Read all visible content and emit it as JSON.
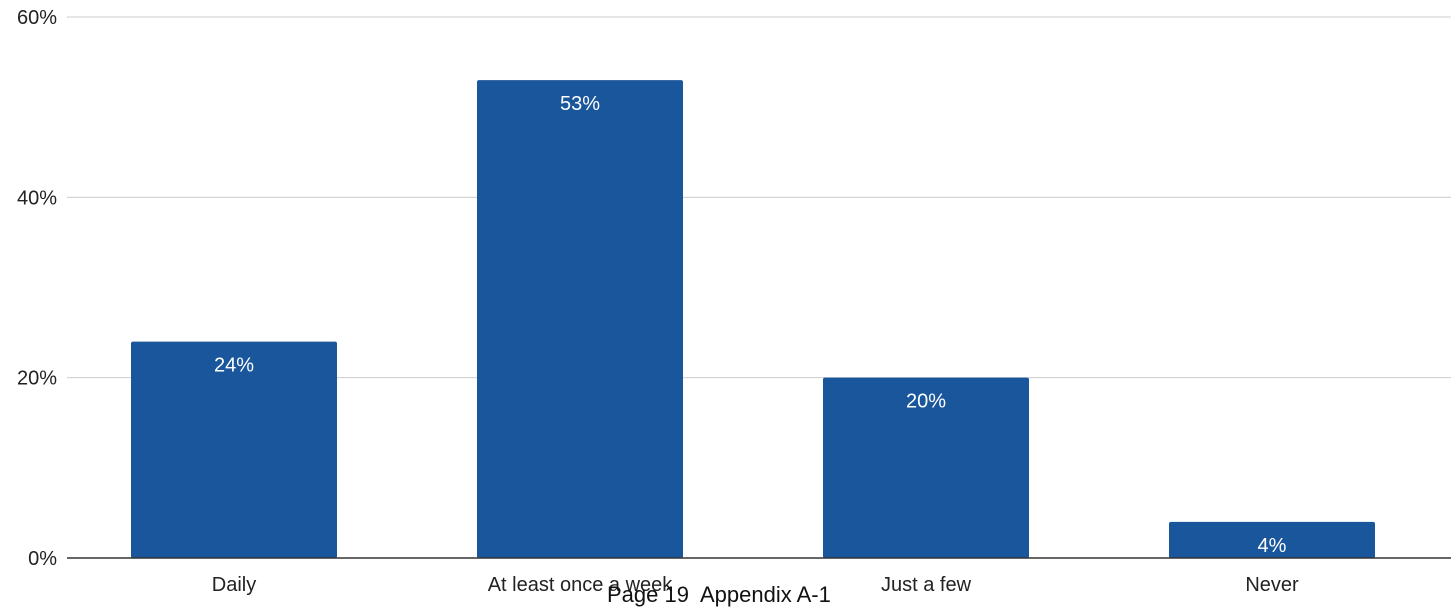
{
  "chart_data": {
    "type": "bar",
    "categories": [
      "Daily",
      "At least once a week",
      "Just a few",
      "Never"
    ],
    "values": [
      24,
      53,
      20,
      4
    ],
    "data_labels": [
      "24%",
      "53%",
      "20%",
      "4%"
    ],
    "ylim": [
      0,
      60
    ],
    "yticks": [
      0,
      20,
      40,
      60
    ],
    "ytick_labels": [
      "0%",
      "20%",
      "40%",
      "60%"
    ],
    "grid": true,
    "bar_color": "#1a569b"
  },
  "footer": {
    "text": "Page 19  Appendix A-1"
  }
}
